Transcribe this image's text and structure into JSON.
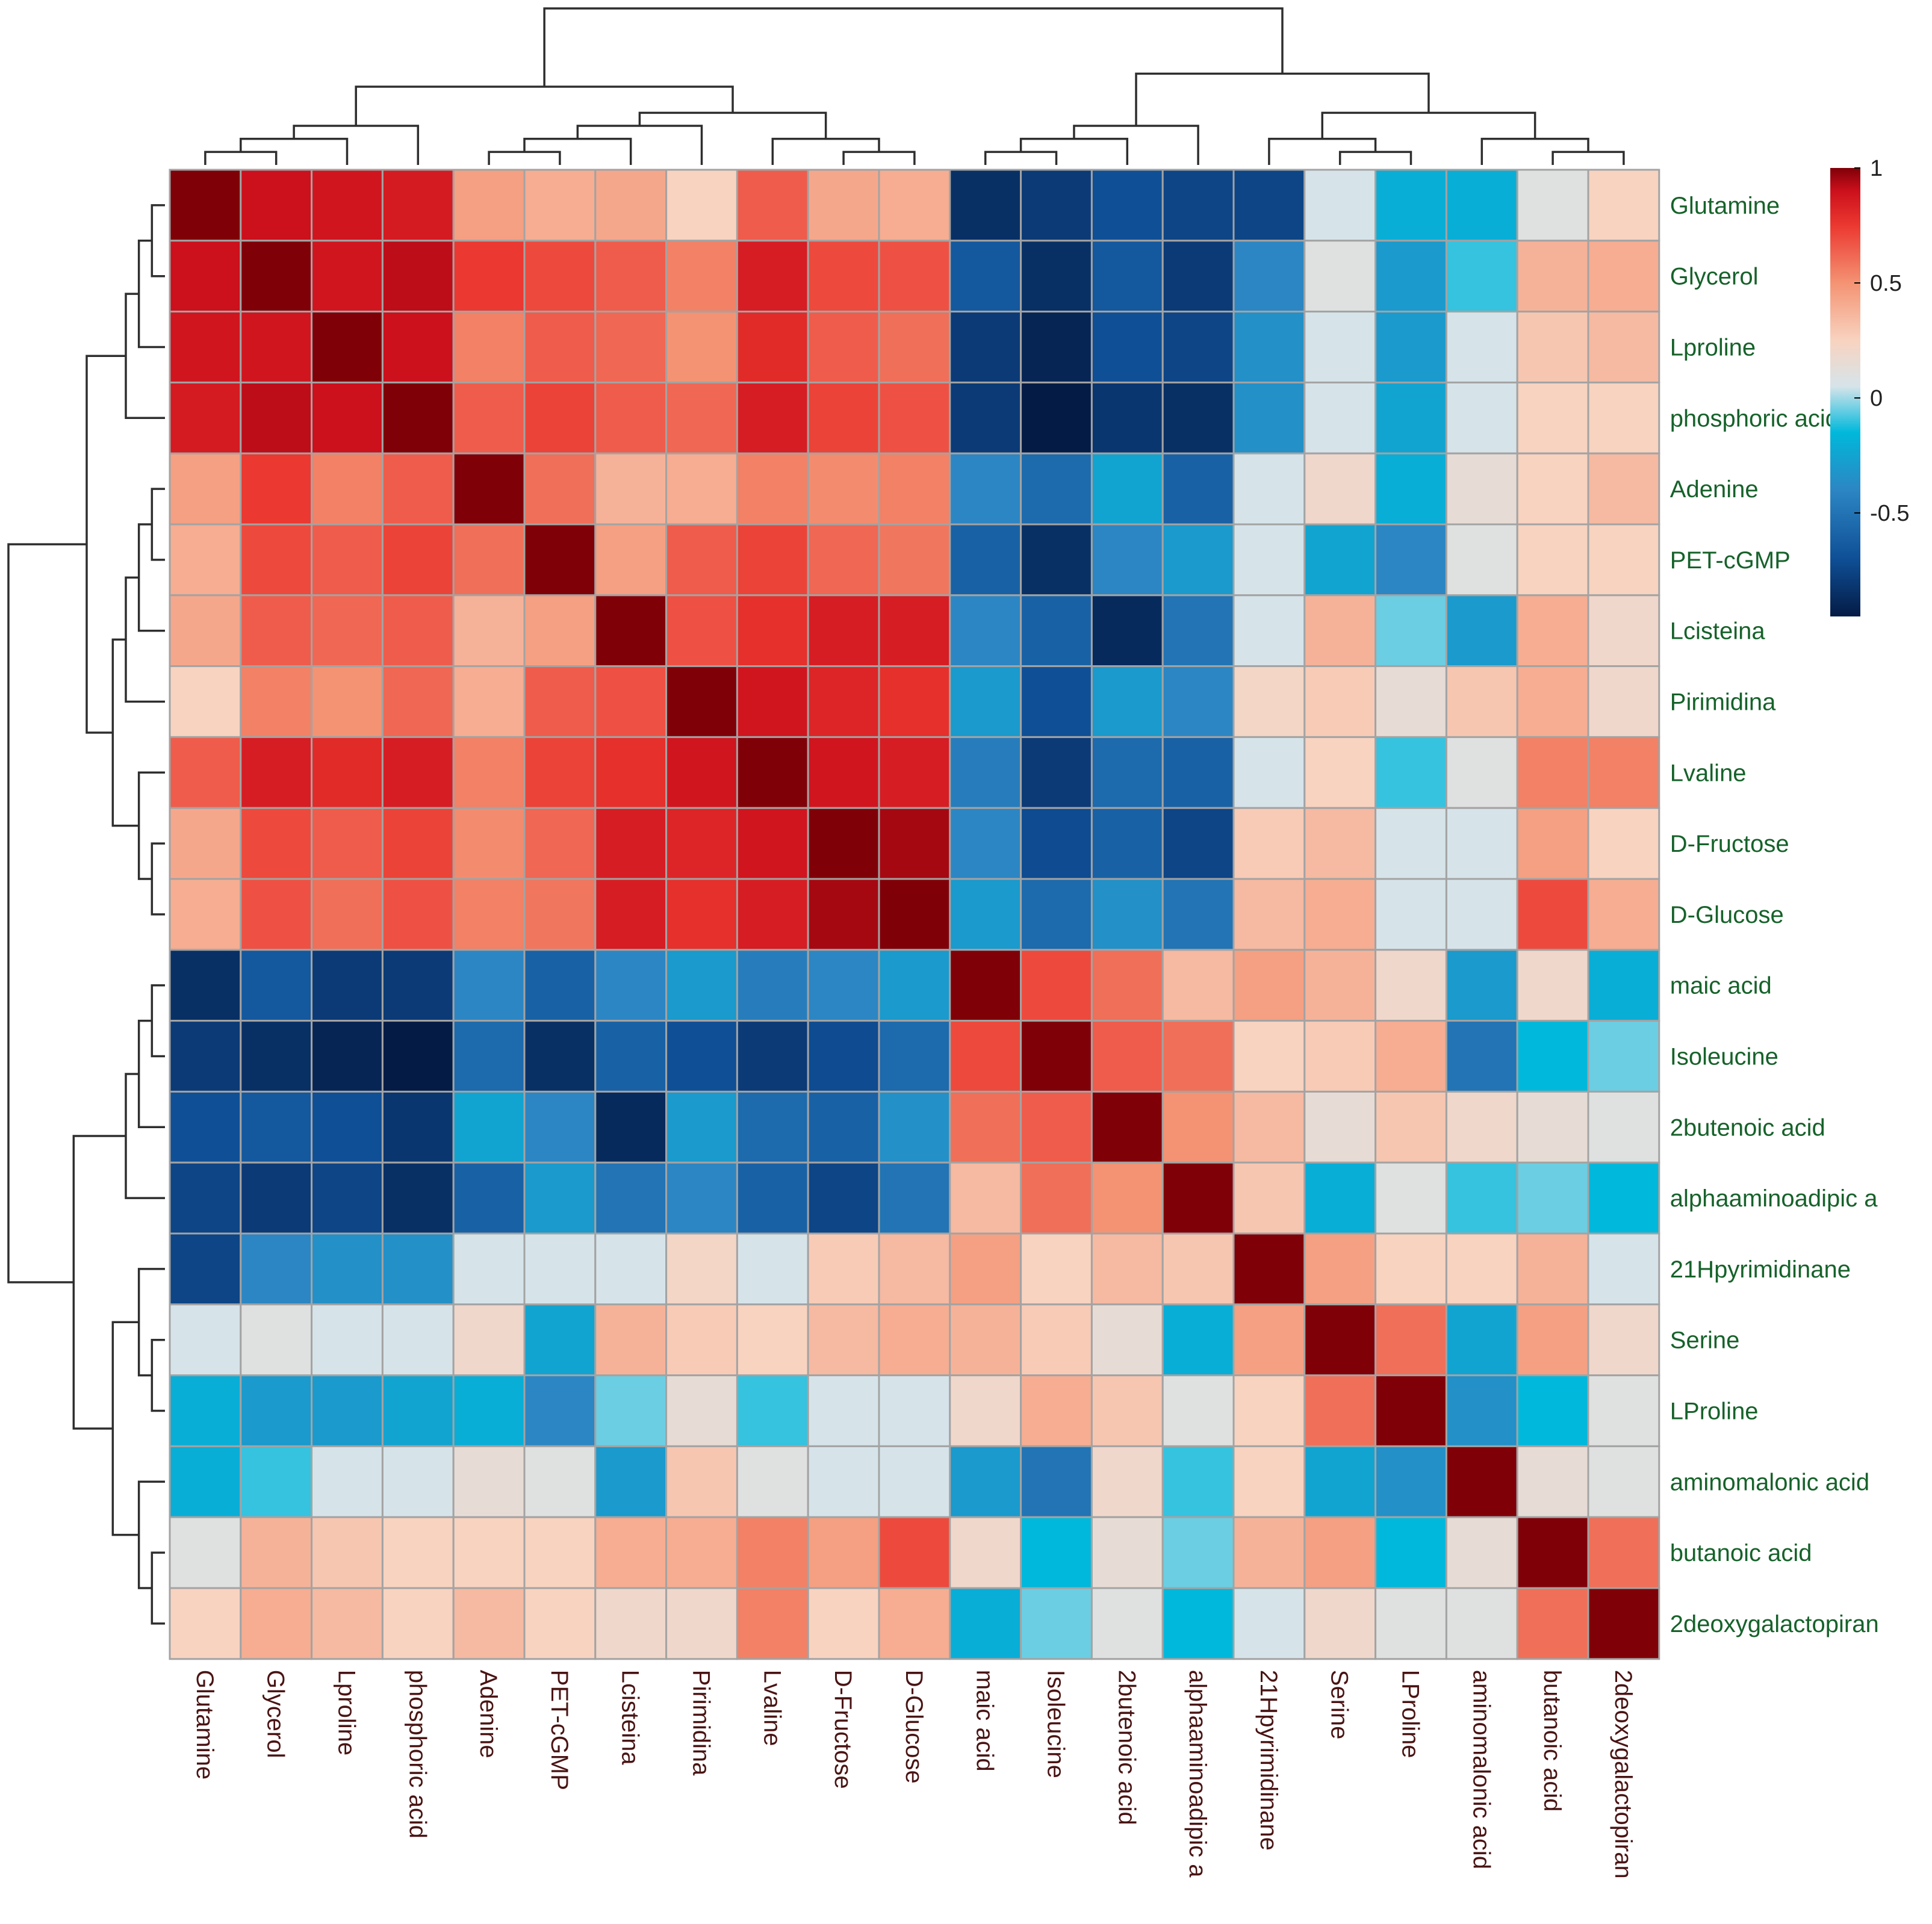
{
  "chart_data": {
    "type": "heatmap",
    "title": "",
    "labels": [
      "Glutamine",
      "Glycerol",
      "Lproline",
      "phosphoric acid",
      "Adenine",
      "PET-cGMP",
      "Lcisteina",
      "Pirimidina",
      "Lvaline",
      "D-Fructose",
      "D-Glucose",
      "maic acid",
      "Isoleucine",
      "2butenoic acid",
      "alphaaminoadipic a",
      "21Hpyrimidinane",
      "Serine",
      "LProline",
      "aminomalonic acid",
      "butanoic acid",
      "2deoxygalactopiran"
    ],
    "values": [
      [
        1.0,
        0.9,
        0.88,
        0.86,
        0.45,
        0.4,
        0.42,
        0.25,
        0.65,
        0.42,
        0.4,
        -0.85,
        -0.8,
        -0.7,
        -0.75,
        -0.75,
        0.05,
        -0.2,
        -0.2,
        0.1,
        0.25
      ],
      [
        0.9,
        1.0,
        0.88,
        0.92,
        0.75,
        0.7,
        0.65,
        0.55,
        0.85,
        0.7,
        0.68,
        -0.65,
        -0.85,
        -0.65,
        -0.8,
        -0.4,
        0.1,
        -0.3,
        -0.1,
        0.38,
        0.4
      ],
      [
        0.88,
        0.88,
        1.0,
        0.9,
        0.55,
        0.65,
        0.62,
        0.5,
        0.8,
        0.65,
        0.6,
        -0.8,
        -0.9,
        -0.7,
        -0.75,
        -0.35,
        0.05,
        -0.3,
        0.05,
        0.3,
        0.35
      ],
      [
        0.86,
        0.92,
        0.9,
        1.0,
        0.65,
        0.72,
        0.65,
        0.62,
        0.85,
        0.72,
        0.68,
        -0.8,
        -0.95,
        -0.82,
        -0.85,
        -0.35,
        0.05,
        -0.25,
        0.05,
        0.25,
        0.25
      ],
      [
        0.45,
        0.75,
        0.55,
        0.65,
        1.0,
        0.6,
        0.38,
        0.4,
        0.55,
        0.52,
        0.55,
        -0.4,
        -0.55,
        -0.25,
        -0.6,
        0.05,
        0.2,
        -0.2,
        0.15,
        0.25,
        0.35
      ],
      [
        0.4,
        0.7,
        0.65,
        0.72,
        0.6,
        1.0,
        0.45,
        0.65,
        0.72,
        0.62,
        0.58,
        -0.6,
        -0.85,
        -0.4,
        -0.3,
        0.05,
        -0.25,
        -0.4,
        0.1,
        0.25,
        0.25
      ],
      [
        0.42,
        0.65,
        0.62,
        0.65,
        0.38,
        0.45,
        1.0,
        0.68,
        0.78,
        0.85,
        0.85,
        -0.4,
        -0.6,
        -0.88,
        -0.5,
        0.05,
        0.38,
        -0.05,
        -0.3,
        0.4,
        0.2
      ],
      [
        0.25,
        0.55,
        0.5,
        0.62,
        0.4,
        0.65,
        0.68,
        1.0,
        0.88,
        0.82,
        0.78,
        -0.3,
        -0.7,
        -0.3,
        -0.4,
        0.22,
        0.28,
        0.15,
        0.3,
        0.4,
        0.2
      ],
      [
        0.65,
        0.85,
        0.8,
        0.85,
        0.55,
        0.72,
        0.78,
        0.88,
        1.0,
        0.88,
        0.85,
        -0.45,
        -0.8,
        -0.55,
        -0.6,
        0.05,
        0.25,
        -0.1,
        0.1,
        0.55,
        0.55
      ],
      [
        0.42,
        0.7,
        0.65,
        0.72,
        0.52,
        0.62,
        0.85,
        0.82,
        0.88,
        1.0,
        0.95,
        -0.4,
        -0.72,
        -0.6,
        -0.75,
        0.28,
        0.35,
        0.05,
        0.05,
        0.45,
        0.25
      ],
      [
        0.4,
        0.68,
        0.6,
        0.68,
        0.55,
        0.58,
        0.85,
        0.78,
        0.85,
        0.95,
        1.0,
        -0.3,
        -0.55,
        -0.35,
        -0.5,
        0.35,
        0.4,
        0.05,
        0.05,
        0.7,
        0.4
      ],
      [
        -0.85,
        -0.65,
        -0.8,
        -0.8,
        -0.4,
        -0.6,
        -0.4,
        -0.3,
        -0.45,
        -0.4,
        -0.3,
        1.0,
        0.7,
        0.6,
        0.35,
        0.45,
        0.38,
        0.2,
        -0.3,
        0.2,
        -0.2
      ],
      [
        -0.8,
        -0.85,
        -0.9,
        -0.95,
        -0.55,
        -0.85,
        -0.6,
        -0.7,
        -0.8,
        -0.72,
        -0.55,
        0.7,
        1.0,
        0.65,
        0.6,
        0.25,
        0.28,
        0.4,
        -0.5,
        -0.15,
        -0.05
      ],
      [
        -0.7,
        -0.65,
        -0.7,
        -0.82,
        -0.25,
        -0.4,
        -0.88,
        -0.3,
        -0.55,
        -0.6,
        -0.35,
        0.6,
        0.65,
        1.0,
        0.5,
        0.35,
        0.15,
        0.3,
        0.2,
        0.15,
        0.1
      ],
      [
        -0.75,
        -0.8,
        -0.75,
        -0.85,
        -0.6,
        -0.3,
        -0.5,
        -0.4,
        -0.6,
        -0.75,
        -0.5,
        0.35,
        0.6,
        0.5,
        1.0,
        0.3,
        -0.2,
        0.1,
        -0.1,
        -0.05,
        -0.15
      ],
      [
        -0.75,
        -0.4,
        -0.35,
        -0.35,
        0.05,
        0.05,
        0.05,
        0.22,
        0.05,
        0.28,
        0.35,
        0.45,
        0.25,
        0.35,
        0.3,
        1.0,
        0.45,
        0.25,
        0.25,
        0.38,
        0.05
      ],
      [
        0.05,
        0.1,
        0.05,
        0.05,
        0.2,
        -0.25,
        0.38,
        0.28,
        0.25,
        0.35,
        0.4,
        0.38,
        0.28,
        0.15,
        -0.2,
        0.45,
        1.0,
        0.6,
        -0.25,
        0.45,
        0.2
      ],
      [
        -0.2,
        -0.3,
        -0.3,
        -0.25,
        -0.2,
        -0.4,
        -0.05,
        0.15,
        -0.1,
        0.05,
        0.05,
        0.2,
        0.4,
        0.3,
        0.1,
        0.25,
        0.6,
        1.0,
        -0.35,
        -0.15,
        0.1
      ],
      [
        -0.2,
        -0.1,
        0.05,
        0.05,
        0.15,
        0.1,
        -0.3,
        0.3,
        0.1,
        0.05,
        0.05,
        -0.3,
        -0.5,
        0.2,
        -0.1,
        0.25,
        -0.25,
        -0.35,
        1.0,
        0.15,
        0.1
      ],
      [
        0.1,
        0.38,
        0.3,
        0.25,
        0.25,
        0.25,
        0.4,
        0.4,
        0.55,
        0.45,
        0.7,
        0.2,
        -0.15,
        0.15,
        -0.05,
        0.38,
        0.45,
        -0.15,
        0.15,
        1.0,
        0.6
      ],
      [
        0.25,
        0.4,
        0.35,
        0.25,
        0.35,
        0.25,
        0.2,
        0.2,
        0.55,
        0.25,
        0.4,
        -0.2,
        -0.05,
        0.1,
        -0.15,
        0.05,
        0.2,
        0.1,
        0.1,
        0.6,
        1.0
      ]
    ],
    "color_scale": {
      "stops": [
        {
          "value": -0.95,
          "color": "#041b45"
        },
        {
          "value": -0.7,
          "color": "#0f4f96"
        },
        {
          "value": -0.4,
          "color": "#2c86c3"
        },
        {
          "value": -0.15,
          "color": "#00b8db"
        },
        {
          "value": 0.05,
          "color": "#d6e4ea"
        },
        {
          "value": 0.25,
          "color": "#f8d3c0"
        },
        {
          "value": 0.5,
          "color": "#f49373"
        },
        {
          "value": 0.75,
          "color": "#eb3830"
        },
        {
          "value": 0.9,
          "color": "#cc101c"
        },
        {
          "value": 1.0,
          "color": "#800008"
        }
      ]
    },
    "legend": {
      "ticks": [
        {
          "value": 1,
          "label": "1"
        },
        {
          "value": 0.5,
          "label": "0.5"
        },
        {
          "value": 0,
          "label": "0"
        },
        {
          "value": -0.5,
          "label": "-0.5"
        }
      ],
      "range": [
        -0.95,
        1
      ]
    },
    "dendrogram": {
      "merges": [
        [
          0,
          1,
          1
        ],
        [
          21,
          2,
          2
        ],
        [
          22,
          3,
          3
        ],
        [
          4,
          5,
          1
        ],
        [
          24,
          6,
          2
        ],
        [
          25,
          7,
          3
        ],
        [
          9,
          10,
          1
        ],
        [
          8,
          27,
          2
        ],
        [
          26,
          28,
          4
        ],
        [
          23,
          29,
          6
        ],
        [
          11,
          12,
          1
        ],
        [
          31,
          13,
          2
        ],
        [
          32,
          14,
          3
        ],
        [
          16,
          17,
          1
        ],
        [
          15,
          34,
          2
        ],
        [
          19,
          20,
          1
        ],
        [
          18,
          36,
          2
        ],
        [
          35,
          37,
          4
        ],
        [
          33,
          38,
          7
        ],
        [
          30,
          39,
          12
        ]
      ]
    }
  }
}
